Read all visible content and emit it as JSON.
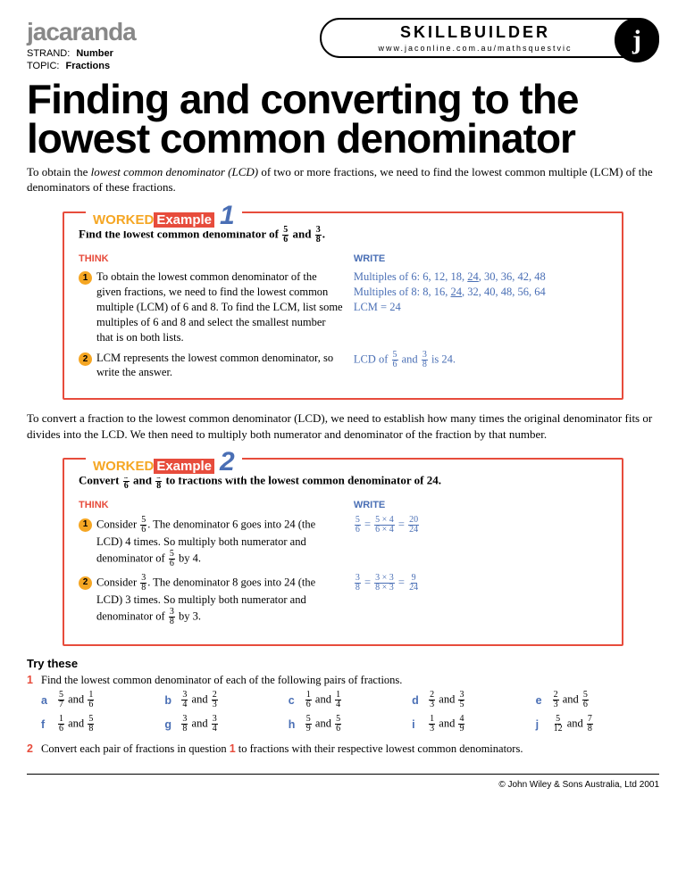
{
  "brand": "jacaranda",
  "meta": {
    "strand_label": "STRAND:",
    "strand_value": "Number",
    "topic_label": "TOPIC:",
    "topic_value": "Fractions"
  },
  "pill": {
    "title": "SKILLBUILDER",
    "url": "www.jaconline.com.au/mathsquestvic",
    "badge": "j"
  },
  "title": "Finding and converting to the lowest common denominator",
  "intro_a": "To obtain the ",
  "intro_b": "lowest common denominator (LCD)",
  "intro_c": " of two or more fractions, we need to find the lowest common multiple (LCM) of the denominators of these fractions.",
  "worked_label_a": "WORKED",
  "worked_label_b": "Example",
  "ex1": {
    "num": "1",
    "prompt_a": "Find the lowest common denominator of ",
    "prompt_b": " and ",
    "prompt_c": ".",
    "f1": {
      "n": "5",
      "d": "6"
    },
    "f2": {
      "n": "3",
      "d": "8"
    },
    "think_h": "THINK",
    "write_h": "WRITE",
    "rows": [
      {
        "n": "1",
        "t": "To obtain the lowest common denominator of the given fractions, we need to find the lowest common multiple (LCM) of 6 and 8. To find the LCM, list some multiples of 6 and 8 and select the smallest number that is on both lists.",
        "w1": "Multiples of 6: 6, 12, 18, ",
        "w1u": "24",
        "w1b": ", 30, 36, 42, 48",
        "w2": "Multiples of 8: 8, 16, ",
        "w2u": "24",
        "w2b": ", 32, 40, 48, 56, 64",
        "w3": "LCM = 24"
      },
      {
        "n": "2",
        "t": "LCM represents the lowest common denominator, so write the answer.",
        "w": "LCD of ",
        "wa": " and ",
        "wb": " is 24."
      }
    ]
  },
  "between": "To convert a fraction to the lowest common denominator (LCD), we need to establish how many times the original denominator fits or divides into the LCD. We then need to multiply both numerator and denominator of the fraction by that number.",
  "ex2": {
    "num": "2",
    "prompt_a": "Convert ",
    "prompt_b": " and ",
    "prompt_c": " to fractions with the lowest common denominator of 24.",
    "f1": {
      "n": "5",
      "d": "6"
    },
    "f2": {
      "n": "3",
      "d": "8"
    },
    "rows": [
      {
        "n": "1",
        "ta": "Consider ",
        "tb": ". The denominator 6 goes into 24 (the LCD) 4 times. So multiply both numerator and denominator of ",
        "tc": " by 4.",
        "f": {
          "n": "5",
          "d": "6"
        },
        "eq_a": {
          "n": "5",
          "d": "6"
        },
        "eq_b": {
          "n": "5 × 4",
          "d": "6 × 4"
        },
        "eq_c": {
          "n": "20",
          "d": "24"
        }
      },
      {
        "n": "2",
        "ta": "Consider ",
        "tb": ". The denominator 8 goes into 24 (the LCD) 3 times. So multiply both numerator and denominator of ",
        "tc": " by 3.",
        "f": {
          "n": "3",
          "d": "8"
        },
        "eq_a": {
          "n": "3",
          "d": "8"
        },
        "eq_b": {
          "n": "3 × 3",
          "d": "8 × 3"
        },
        "eq_c": {
          "n": "9",
          "d": "24"
        }
      }
    ]
  },
  "try_h": "Try these",
  "q1": {
    "n": "1",
    "text": "Find the lowest common denominator of each of the following pairs of fractions.",
    "opts": [
      {
        "l": "a",
        "f1": {
          "n": "5",
          "d": "7"
        },
        "f2": {
          "n": "1",
          "d": "6"
        }
      },
      {
        "l": "b",
        "f1": {
          "n": "3",
          "d": "4"
        },
        "f2": {
          "n": "2",
          "d": "3"
        }
      },
      {
        "l": "c",
        "f1": {
          "n": "1",
          "d": "6"
        },
        "f2": {
          "n": "1",
          "d": "4"
        }
      },
      {
        "l": "d",
        "f1": {
          "n": "2",
          "d": "3"
        },
        "f2": {
          "n": "3",
          "d": "5"
        }
      },
      {
        "l": "e",
        "f1": {
          "n": "2",
          "d": "3"
        },
        "f2": {
          "n": "5",
          "d": "6"
        }
      },
      {
        "l": "f",
        "f1": {
          "n": "1",
          "d": "6"
        },
        "f2": {
          "n": "5",
          "d": "8"
        }
      },
      {
        "l": "g",
        "f1": {
          "n": "3",
          "d": "8"
        },
        "f2": {
          "n": "3",
          "d": "4"
        }
      },
      {
        "l": "h",
        "f1": {
          "n": "5",
          "d": "9"
        },
        "f2": {
          "n": "5",
          "d": "6"
        }
      },
      {
        "l": "i",
        "f1": {
          "n": "1",
          "d": "3"
        },
        "f2": {
          "n": "4",
          "d": "9"
        }
      },
      {
        "l": "j",
        "f1": {
          "n": "5",
          "d": "12"
        },
        "f2": {
          "n": "7",
          "d": "8"
        }
      }
    ]
  },
  "q2": {
    "n": "2",
    "ta": "Convert each pair of fractions in question ",
    "tb": "1",
    "tc": " to fractions with their respective lowest common denominators."
  },
  "copyright": "© John Wiley & Sons Australia, Ltd 2001",
  "colors": {
    "red": "#e74c3c",
    "blue": "#4a6fb5",
    "orange": "#f5a623",
    "grey": "#888888"
  }
}
